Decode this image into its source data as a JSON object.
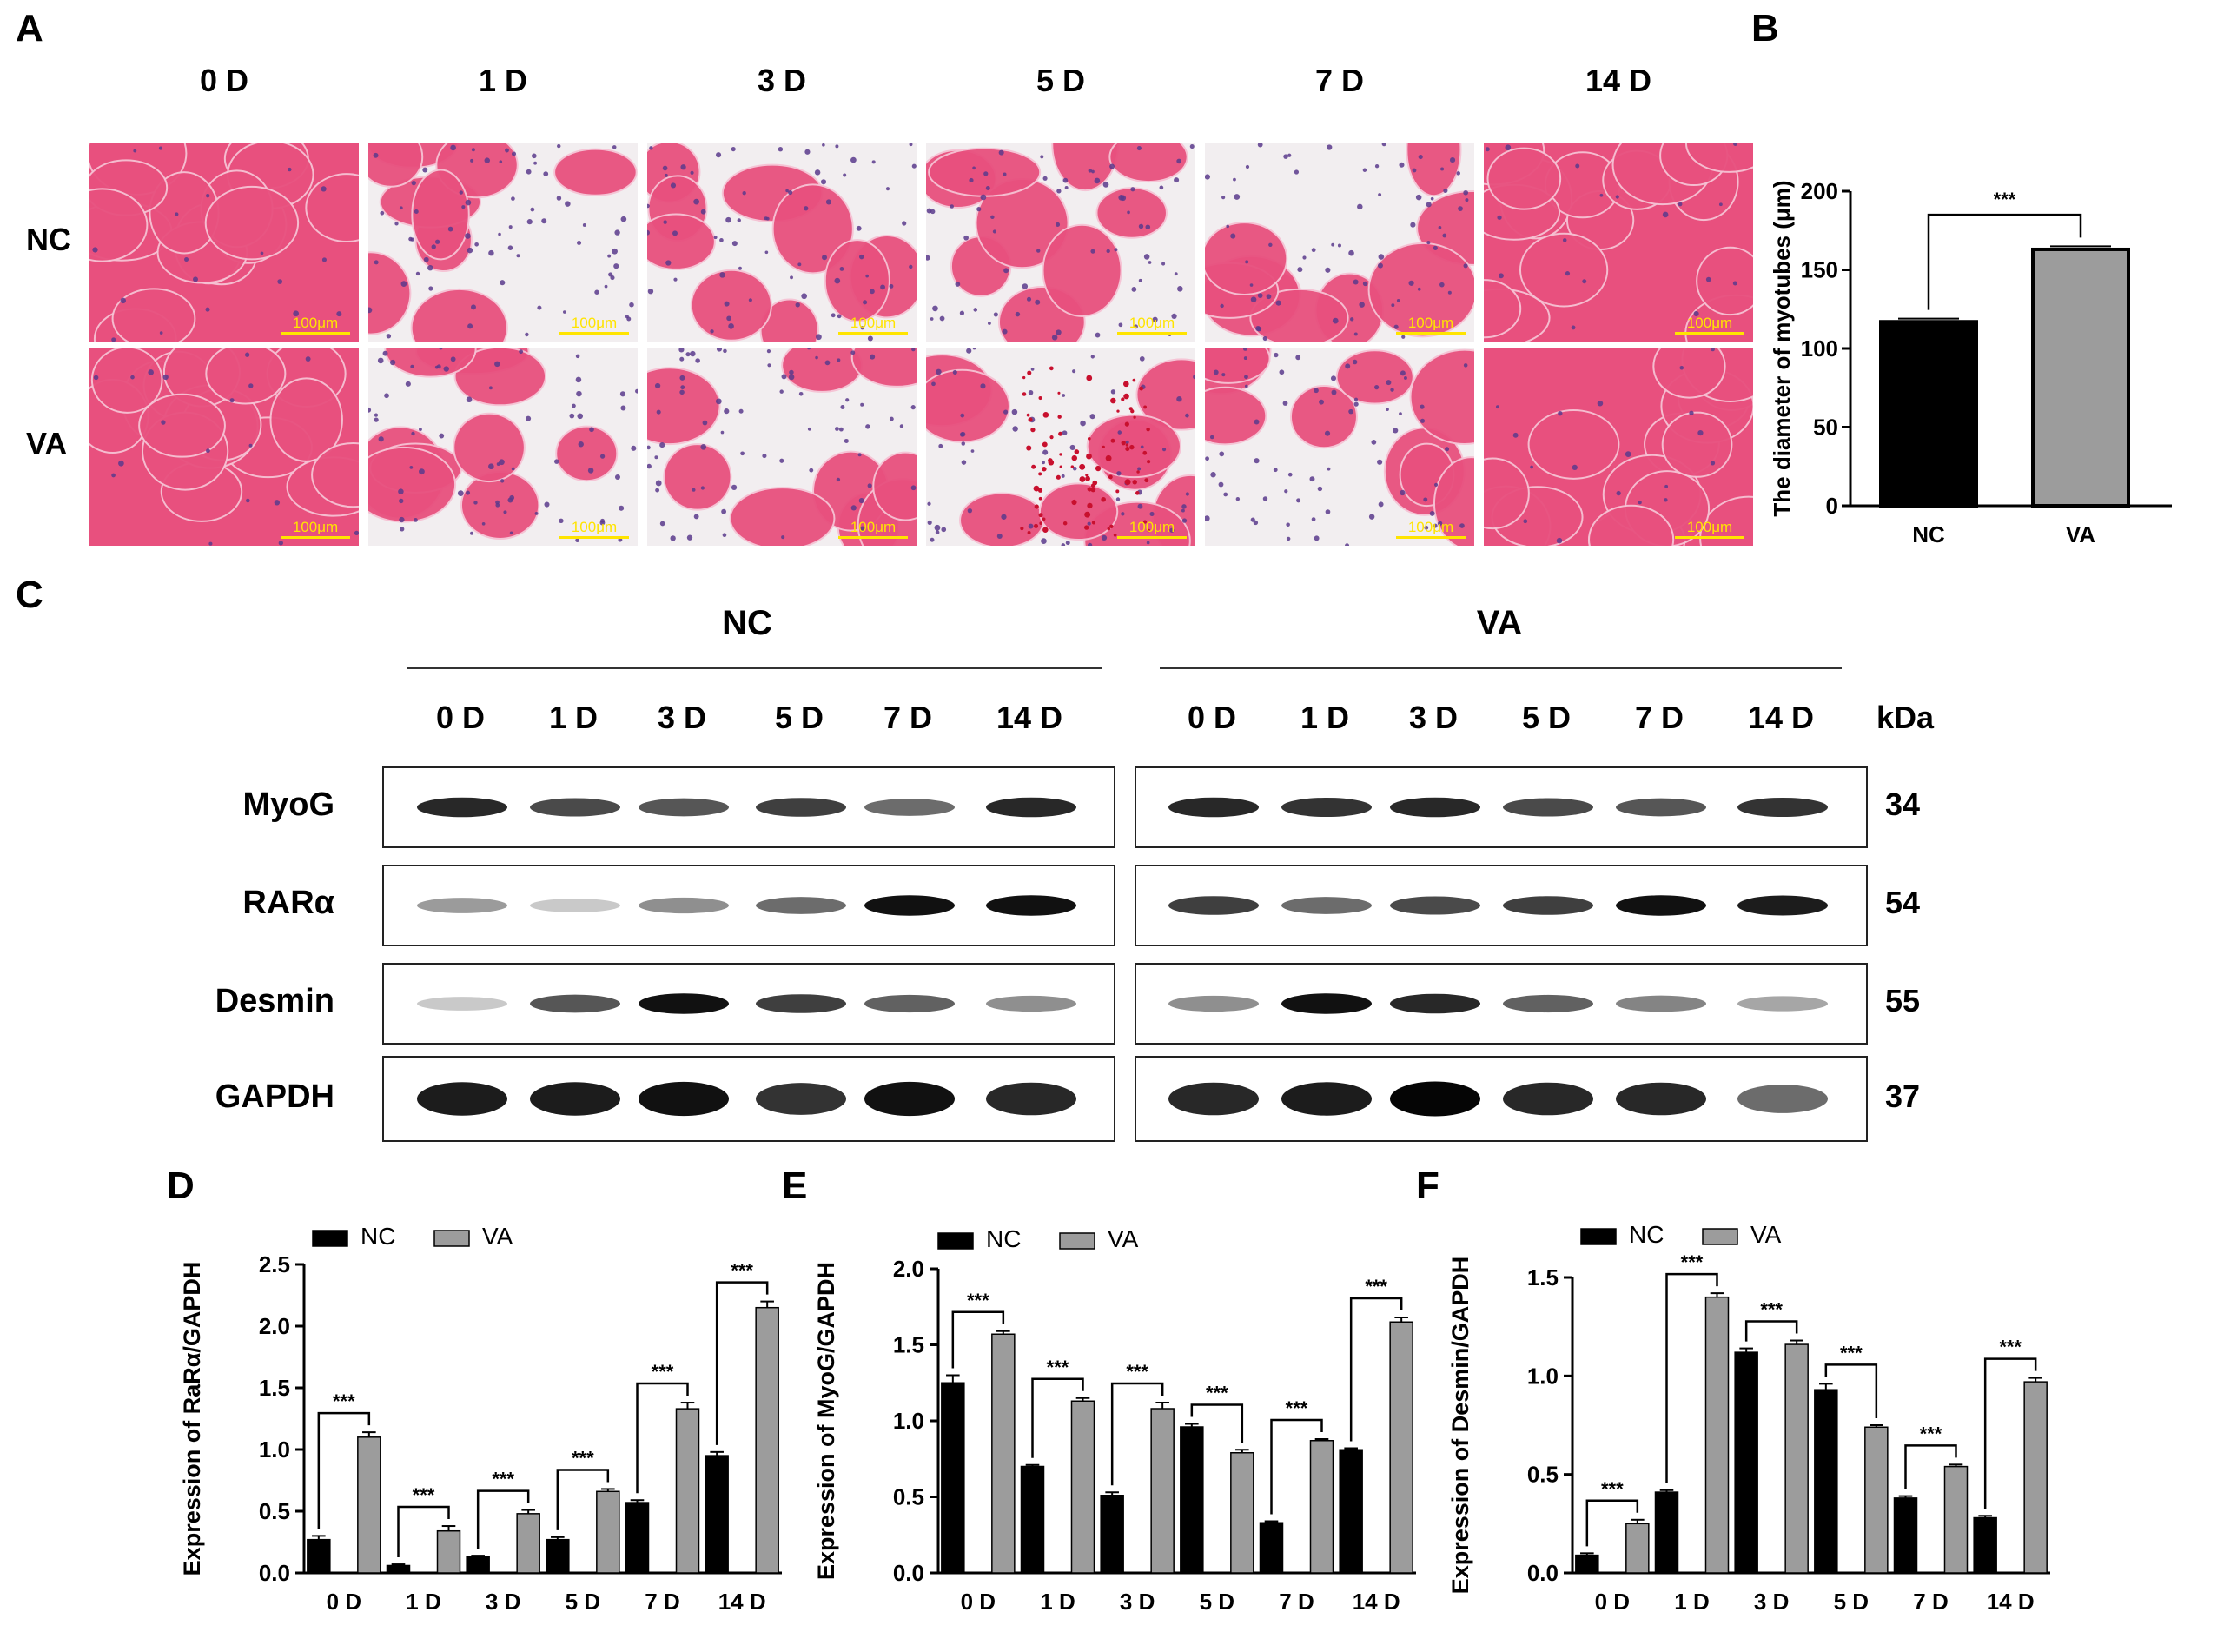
{
  "panels": {
    "A": "A",
    "B": "B",
    "C": "C",
    "D": "D",
    "E": "E",
    "F": "F"
  },
  "histology": {
    "days": [
      "0 D",
      "1 D",
      "3 D",
      "5 D",
      "7 D",
      "14 D"
    ],
    "rows": [
      "NC",
      "VA"
    ],
    "scale_label": "100μm",
    "colors": {
      "tissue": "#e8507e",
      "background": "#f2eef0",
      "nuclei": "#5a3a8c",
      "blood": "#c8102e"
    }
  },
  "chart_B": {
    "type": "bar",
    "categories": [
      "NC",
      "VA"
    ],
    "values": [
      117,
      163
    ],
    "errors": [
      2,
      2
    ],
    "ylabel": "The diameter of myotubes (μm)",
    "ylim": [
      0,
      200
    ],
    "yticks": [
      "0",
      "50",
      "100",
      "150",
      "200"
    ],
    "significance": "***",
    "colors": [
      "#000000",
      "#9c9c9c"
    ]
  },
  "western": {
    "groups": [
      "NC",
      "VA"
    ],
    "lanes": [
      "0 D",
      "1 D",
      "3 D",
      "5 D",
      "7 D",
      "14 D"
    ],
    "kda_header": "kDa",
    "proteins": [
      {
        "name": "MyoG",
        "kda": "34",
        "nc": [
          0.85,
          0.7,
          0.65,
          0.75,
          0.55,
          0.85
        ],
        "va": [
          0.85,
          0.8,
          0.85,
          0.7,
          0.65,
          0.8
        ]
      },
      {
        "name": "RARα",
        "kda": "54",
        "nc": [
          0.35,
          0.15,
          0.4,
          0.55,
          0.95,
          0.95
        ],
        "va": [
          0.75,
          0.55,
          0.7,
          0.75,
          0.95,
          0.9
        ]
      },
      {
        "name": "Desmin",
        "kda": "55",
        "nc": [
          0.15,
          0.65,
          0.95,
          0.75,
          0.6,
          0.4
        ],
        "va": [
          0.4,
          0.95,
          0.85,
          0.6,
          0.45,
          0.3
        ]
      },
      {
        "name": "GAPDH",
        "kda": "37",
        "nc": [
          0.9,
          0.9,
          0.95,
          0.8,
          0.95,
          0.85
        ],
        "va": [
          0.85,
          0.9,
          1.0,
          0.85,
          0.85,
          0.55
        ]
      }
    ]
  },
  "chart_data": [
    {
      "type": "bar",
      "categories": [
        "NC",
        "VA"
      ],
      "series": [
        {
          "name": "",
          "values": [
            117,
            163
          ]
        }
      ],
      "ylabel": "The diameter of myotubes (μm)",
      "ylim": [
        0,
        200
      ]
    },
    {
      "type": "bar",
      "categories": [
        "0 D",
        "1 D",
        "3 D",
        "5 D",
        "7 D",
        "14 D"
      ],
      "series": [
        {
          "name": "NC",
          "values": [
            0.27,
            0.06,
            0.13,
            0.27,
            0.57,
            0.95
          ],
          "errors": [
            0.03,
            0.01,
            0.01,
            0.02,
            0.02,
            0.03
          ]
        },
        {
          "name": "VA",
          "values": [
            1.1,
            0.34,
            0.48,
            0.66,
            1.33,
            2.15
          ],
          "errors": [
            0.04,
            0.04,
            0.03,
            0.02,
            0.05,
            0.05
          ]
        }
      ],
      "ylabel": "Expression of RaRα/GAPDH",
      "ylim": [
        0,
        2.5
      ],
      "yticks": [
        "0.0",
        "0.5",
        "1.0",
        "1.5",
        "2.0",
        "2.5"
      ],
      "significance": "***"
    },
    {
      "type": "bar",
      "categories": [
        "0 D",
        "1 D",
        "3 D",
        "5 D",
        "7 D",
        "14 D"
      ],
      "series": [
        {
          "name": "NC",
          "values": [
            1.25,
            0.7,
            0.51,
            0.96,
            0.33,
            0.81
          ],
          "errors": [
            0.05,
            0.01,
            0.02,
            0.02,
            0.01,
            0.01
          ]
        },
        {
          "name": "VA",
          "values": [
            1.57,
            1.13,
            1.08,
            0.79,
            0.87,
            1.65
          ],
          "errors": [
            0.02,
            0.02,
            0.04,
            0.02,
            0.01,
            0.03
          ]
        }
      ],
      "ylabel": "Expression of MyoG/GAPDH",
      "ylim": [
        0,
        2.0
      ],
      "yticks": [
        "0.0",
        "0.5",
        "1.0",
        "1.5",
        "2.0"
      ],
      "significance": "***"
    },
    {
      "type": "bar",
      "categories": [
        "0 D",
        "1 D",
        "3 D",
        "5 D",
        "7 D",
        "14 D"
      ],
      "series": [
        {
          "name": "NC",
          "values": [
            0.09,
            0.41,
            1.12,
            0.93,
            0.38,
            0.28
          ],
          "errors": [
            0.01,
            0.01,
            0.02,
            0.03,
            0.01,
            0.01
          ]
        },
        {
          "name": "VA",
          "values": [
            0.25,
            1.4,
            1.16,
            0.74,
            0.54,
            0.97
          ],
          "errors": [
            0.02,
            0.02,
            0.02,
            0.01,
            0.01,
            0.02
          ]
        }
      ],
      "ylabel": "Expression of Desmin/GAPDH",
      "ylim": [
        0,
        1.5
      ],
      "yticks": [
        "0.0",
        "0.5",
        "1.0",
        "1.5"
      ],
      "significance": "***"
    }
  ]
}
